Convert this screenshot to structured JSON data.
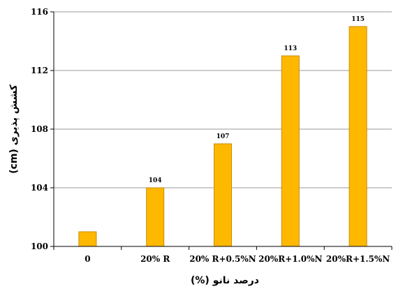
{
  "chart_data": {
    "type": "bar",
    "categories": [
      "0",
      "20% R",
      "20% R+0.5%N",
      "20%R+1.0%N",
      "20%R+1.5%N"
    ],
    "values": [
      101,
      104,
      107,
      113,
      115
    ],
    "data_labels": [
      "",
      "104",
      "107",
      "113",
      "115"
    ],
    "xlabel": "درصد نانو (%)",
    "ylabel": "کشش پذیری (cm)",
    "ylim": [
      100,
      116
    ],
    "yticks": [
      100,
      104,
      108,
      112,
      116
    ],
    "grid": true,
    "bar_color": "#FFB800",
    "bar_edge_color": "#C98A00",
    "grid_color": "#9a9a9a"
  }
}
